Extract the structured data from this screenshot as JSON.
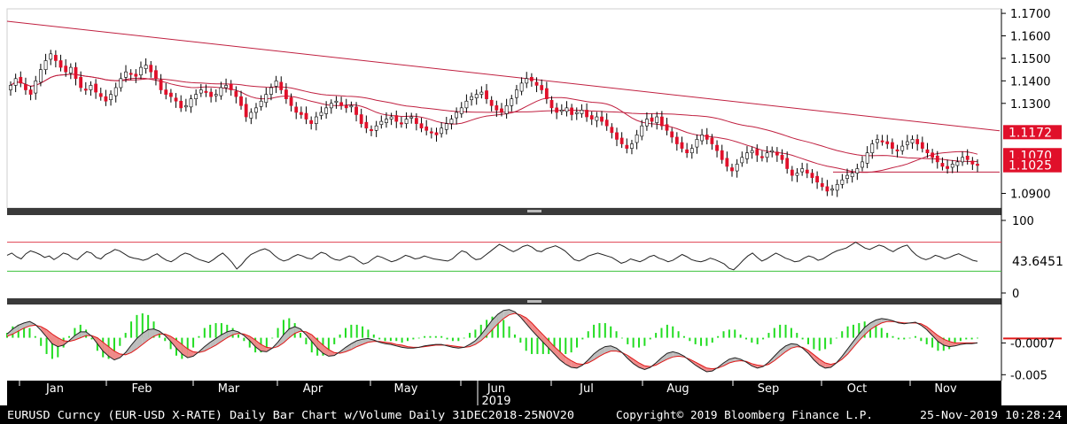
{
  "colors": {
    "background": "#ffffff",
    "frame": "#000000",
    "up_candle": "#ffffff",
    "down_candle": "#e0102a",
    "ma": "#c02040",
    "rsi_line": "#222222",
    "rsi_upper": "#e04050",
    "rsi_lower": "#3cc23c",
    "macd_line": "#222222",
    "signal_line": "#e01818",
    "macd_fill_pos": "#bdbdbd",
    "macd_fill_neg": "#f08a8a",
    "hist": "#22dd22",
    "tag_fill": "#e0102a",
    "tag_text": "#ffffff",
    "footer_bg": "#000000",
    "footer_text": "#ffffff"
  },
  "chart_data": [
    {
      "type": "candlestick",
      "panel": "price",
      "instrument": "EURUSD Curncy",
      "ylim": [
        1.0835,
        1.172
      ],
      "yticks": [
        "1.1700",
        "1.1600",
        "1.1500",
        "1.1400",
        "1.1300",
        "1.0900"
      ],
      "ytick_values": [
        1.17,
        1.16,
        1.15,
        1.14,
        1.13,
        1.09
      ],
      "price_tags": [
        {
          "label": "1.1172",
          "value": 1.1172
        },
        {
          "label": "1.1070",
          "value": 1.107
        },
        {
          "label": "1.1025",
          "value": 1.1025
        }
      ],
      "support_level": 1.0995,
      "trendline": {
        "start": 1.1665,
        "end": 1.1178
      },
      "close_series": [
        1.138,
        1.141,
        1.139,
        1.136,
        1.134,
        1.14,
        1.145,
        1.149,
        1.152,
        1.149,
        1.146,
        1.144,
        1.146,
        1.141,
        1.137,
        1.136,
        1.138,
        1.135,
        1.133,
        1.131,
        1.134,
        1.137,
        1.141,
        1.144,
        1.143,
        1.142,
        1.146,
        1.147,
        1.144,
        1.141,
        1.136,
        1.134,
        1.133,
        1.131,
        1.128,
        1.129,
        1.132,
        1.134,
        1.136,
        1.135,
        1.133,
        1.134,
        1.137,
        1.138,
        1.136,
        1.133,
        1.129,
        1.124,
        1.126,
        1.128,
        1.131,
        1.134,
        1.137,
        1.14,
        1.136,
        1.132,
        1.129,
        1.126,
        1.125,
        1.123,
        1.121,
        1.124,
        1.126,
        1.128,
        1.13,
        1.131,
        1.129,
        1.128,
        1.129,
        1.125,
        1.121,
        1.119,
        1.118,
        1.12,
        1.122,
        1.123,
        1.124,
        1.122,
        1.121,
        1.123,
        1.124,
        1.121,
        1.119,
        1.118,
        1.117,
        1.116,
        1.119,
        1.121,
        1.123,
        1.126,
        1.128,
        1.131,
        1.133,
        1.134,
        1.135,
        1.132,
        1.129,
        1.127,
        1.126,
        1.129,
        1.132,
        1.136,
        1.139,
        1.141,
        1.14,
        1.138,
        1.136,
        1.132,
        1.128,
        1.126,
        1.127,
        1.128,
        1.125,
        1.126,
        1.127,
        1.124,
        1.123,
        1.124,
        1.122,
        1.12,
        1.117,
        1.114,
        1.112,
        1.11,
        1.112,
        1.116,
        1.12,
        1.123,
        1.122,
        1.124,
        1.12,
        1.118,
        1.115,
        1.112,
        1.11,
        1.108,
        1.11,
        1.114,
        1.116,
        1.114,
        1.112,
        1.109,
        1.105,
        1.102,
        1.1,
        1.103,
        1.106,
        1.108,
        1.109,
        1.107,
        1.106,
        1.108,
        1.109,
        1.107,
        1.105,
        1.101,
        1.098,
        1.099,
        1.101,
        1.099,
        1.097,
        1.095,
        1.093,
        1.091,
        1.092,
        1.094,
        1.096,
        1.098,
        1.099,
        1.101,
        1.104,
        1.108,
        1.112,
        1.114,
        1.113,
        1.112,
        1.11,
        1.109,
        1.111,
        1.113,
        1.114,
        1.112,
        1.11,
        1.108,
        1.106,
        1.104,
        1.102,
        1.101,
        1.103,
        1.104,
        1.106,
        1.105,
        1.103,
        1.1025
      ]
    },
    {
      "type": "line",
      "panel": "rsi",
      "ylim": [
        0,
        100
      ],
      "yticks": [
        "100",
        "0"
      ],
      "ytick_values": [
        100,
        0
      ],
      "levels": [
        70,
        30
      ],
      "current_label": "43.6451",
      "values": [
        52,
        55,
        50,
        47,
        54,
        58,
        56,
        53,
        49,
        51,
        46,
        50,
        55,
        53,
        48,
        46,
        52,
        57,
        55,
        49,
        47,
        53,
        56,
        60,
        58,
        54,
        50,
        48,
        47,
        45,
        47,
        51,
        54,
        49,
        45,
        43,
        47,
        52,
        55,
        53,
        49,
        46,
        44,
        42,
        46,
        51,
        55,
        49,
        42,
        33,
        39,
        47,
        53,
        56,
        59,
        61,
        58,
        52,
        47,
        44,
        46,
        50,
        53,
        51,
        48,
        47,
        52,
        56,
        54,
        49,
        46,
        45,
        48,
        51,
        49,
        44,
        40,
        42,
        47,
        51,
        49,
        46,
        43,
        45,
        48,
        52,
        50,
        47,
        48,
        51,
        49,
        47,
        46,
        45,
        44,
        47,
        53,
        58,
        56,
        50,
        46,
        47,
        52,
        57,
        62,
        67,
        64,
        60,
        57,
        60,
        64,
        66,
        63,
        58,
        57,
        61,
        63,
        65,
        62,
        58,
        52,
        46,
        44,
        47,
        51,
        53,
        55,
        53,
        51,
        49,
        45,
        41,
        43,
        47,
        45,
        43,
        46,
        50,
        52,
        48,
        46,
        43,
        45,
        49,
        53,
        50,
        46,
        44,
        43,
        45,
        48,
        46,
        43,
        40,
        34,
        32,
        38,
        45,
        51,
        55,
        49,
        44,
        47,
        51,
        55,
        52,
        48,
        46,
        43,
        44,
        48,
        51,
        49,
        45,
        47,
        51,
        55,
        58,
        60,
        62,
        66,
        70,
        66,
        62,
        60,
        63,
        66,
        64,
        60,
        57,
        61,
        64,
        66,
        58,
        52,
        48,
        46,
        48,
        52,
        50,
        47,
        49,
        52,
        54,
        51,
        48,
        45,
        43.6451
      ]
    },
    {
      "type": "line",
      "panel": "macd",
      "ylim": [
        -0.0058,
        0.0045
      ],
      "yticks": [
        "-0.0007",
        "-0.005"
      ],
      "ytick_values": [
        -0.0007,
        -0.005
      ],
      "series": [
        {
          "name": "",
          "values": [
            0.0005,
            0.0012,
            0.0017,
            0.002,
            0.0022,
            0.0018,
            0.001,
            0.0001,
            -0.0008,
            -0.0012,
            -0.001,
            -0.0004,
            0.0003,
            0.0008,
            0.0008,
            0.0002,
            -0.0008,
            -0.0018,
            -0.0025,
            -0.003,
            -0.0027,
            -0.002,
            -0.001,
            -0.0001,
            0.0006,
            0.0011,
            0.0012,
            0.0009,
            0.0003,
            -0.0005,
            -0.0014,
            -0.0022,
            -0.0027,
            -0.0025,
            -0.0019,
            -0.0012,
            -0.0006,
            -0.0001,
            0.0004,
            0.0008,
            0.001,
            0.0008,
            0.0003,
            -0.0004,
            -0.0012,
            -0.0018,
            -0.0019,
            -0.0014,
            -0.0006,
            0.0004,
            0.0012,
            0.0015,
            0.0012,
            0.0004,
            -0.0005,
            -0.0014,
            -0.0021,
            -0.0025,
            -0.0024,
            -0.0019,
            -0.0013,
            -0.0008,
            -0.0004,
            -0.0002,
            -0.0001,
            -0.0003,
            -0.0006,
            -0.0008,
            -0.0009,
            -0.0011,
            -0.0013,
            -0.0014,
            -0.0014,
            -0.0013,
            -0.0011,
            -0.001,
            -0.0009,
            -0.0009,
            -0.0011,
            -0.0013,
            -0.0014,
            -0.0013,
            -0.0009,
            -0.0004,
            0.0004,
            0.0014,
            0.0024,
            0.0032,
            0.0037,
            0.0038,
            0.0035,
            0.0028,
            0.0019,
            0.001,
            0.0002,
            -0.0006,
            -0.0014,
            -0.0022,
            -0.003,
            -0.0036,
            -0.004,
            -0.0041,
            -0.0037,
            -0.003,
            -0.0022,
            -0.0016,
            -0.0012,
            -0.0011,
            -0.0014,
            -0.002,
            -0.0028,
            -0.0035,
            -0.004,
            -0.0043,
            -0.004,
            -0.0034,
            -0.0027,
            -0.0021,
            -0.0019,
            -0.0021,
            -0.0025,
            -0.0031,
            -0.0037,
            -0.0042,
            -0.0046,
            -0.0045,
            -0.004,
            -0.0034,
            -0.0029,
            -0.0027,
            -0.0029,
            -0.0033,
            -0.0038,
            -0.0041,
            -0.0039,
            -0.0033,
            -0.0025,
            -0.0017,
            -0.0011,
            -0.0008,
            -0.0009,
            -0.0014,
            -0.0021,
            -0.003,
            -0.0037,
            -0.0041,
            -0.004,
            -0.0034,
            -0.0025,
            -0.0015,
            -0.0005,
            0.0005,
            0.0014,
            0.002,
            0.0024,
            0.0026,
            0.0025,
            0.0023,
            0.002,
            0.0019,
            0.002,
            0.0021,
            0.0017,
            0.0011,
            0.0003,
            -0.0005,
            -0.001,
            -0.0012,
            -0.0011,
            -0.0009,
            -0.0008,
            -0.0008,
            -0.0007
          ]
        },
        {
          "name": "",
          "values": [
            0.0002,
            0.0005,
            0.0009,
            0.0013,
            0.0016,
            0.0017,
            0.0015,
            0.0011,
            0.0005,
            0.0,
            -0.0004,
            -0.0005,
            -0.0003,
            0.0,
            0.0003,
            0.0003,
            0.0,
            -0.0006,
            -0.0012,
            -0.0018,
            -0.0022,
            -0.0023,
            -0.002,
            -0.0015,
            -0.0009,
            -0.0003,
            0.0002,
            0.0005,
            0.0005,
            0.0002,
            -0.0003,
            -0.0009,
            -0.0015,
            -0.0019,
            -0.002,
            -0.0018,
            -0.0014,
            -0.001,
            -0.0005,
            0.0,
            0.0004,
            0.0006,
            0.0005,
            0.0002,
            -0.0003,
            -0.0009,
            -0.0013,
            -0.0014,
            -0.0012,
            -0.0007,
            0.0,
            0.0006,
            0.0009,
            0.0008,
            0.0004,
            -0.0003,
            -0.001,
            -0.0016,
            -0.002,
            -0.0021,
            -0.0019,
            -0.0016,
            -0.0012,
            -0.0009,
            -0.0006,
            -0.0005,
            -0.0005,
            -0.0006,
            -0.0007,
            -0.0009,
            -0.001,
            -0.0012,
            -0.0013,
            -0.0013,
            -0.0012,
            -0.0011,
            -0.001,
            -0.001,
            -0.001,
            -0.0011,
            -0.0012,
            -0.0013,
            -0.0012,
            -0.0009,
            -0.0004,
            0.0003,
            0.0011,
            0.0019,
            0.0026,
            0.0031,
            0.0033,
            0.0031,
            0.0027,
            0.002,
            0.0012,
            0.0004,
            -0.0004,
            -0.0012,
            -0.0019,
            -0.0026,
            -0.0031,
            -0.0035,
            -0.0036,
            -0.0034,
            -0.003,
            -0.0025,
            -0.0021,
            -0.0018,
            -0.0018,
            -0.002,
            -0.0024,
            -0.0029,
            -0.0034,
            -0.0038,
            -0.0039,
            -0.0037,
            -0.0033,
            -0.0029,
            -0.0026,
            -0.0025,
            -0.0026,
            -0.0029,
            -0.0033,
            -0.0037,
            -0.0041,
            -0.0042,
            -0.0041,
            -0.0038,
            -0.0034,
            -0.0032,
            -0.0031,
            -0.0032,
            -0.0035,
            -0.0037,
            -0.0038,
            -0.0036,
            -0.0031,
            -0.0025,
            -0.0019,
            -0.0014,
            -0.0012,
            -0.0013,
            -0.0017,
            -0.0023,
            -0.0029,
            -0.0034,
            -0.0036,
            -0.0034,
            -0.0029,
            -0.0022,
            -0.0013,
            -0.0004,
            0.0004,
            0.0011,
            0.0016,
            0.002,
            0.0022,
            0.0022,
            0.0021,
            0.002,
            0.002,
            0.002,
            0.0019,
            0.0015,
            0.0009,
            0.0003,
            -0.0002,
            -0.0005,
            -0.0007,
            -0.0007,
            -0.0007,
            -0.0007,
            -0.0007
          ]
        }
      ]
    }
  ],
  "x_axis": {
    "months": [
      "Jan",
      "Feb",
      "Mar",
      "Apr",
      "May",
      "Jun",
      "Jul",
      "Aug",
      "Sep",
      "Oct",
      "Nov"
    ],
    "year_label": "2019"
  },
  "footer": {
    "left": "EURUSD Curncy (EUR-USD X-RATE) Daily Bar Chart w/Volume  Daily 31DEC2018-25NOV20",
    "center": "Copyright© 2019 Bloomberg Finance L.P.",
    "right": "25-Nov-2019 10:28:24"
  }
}
